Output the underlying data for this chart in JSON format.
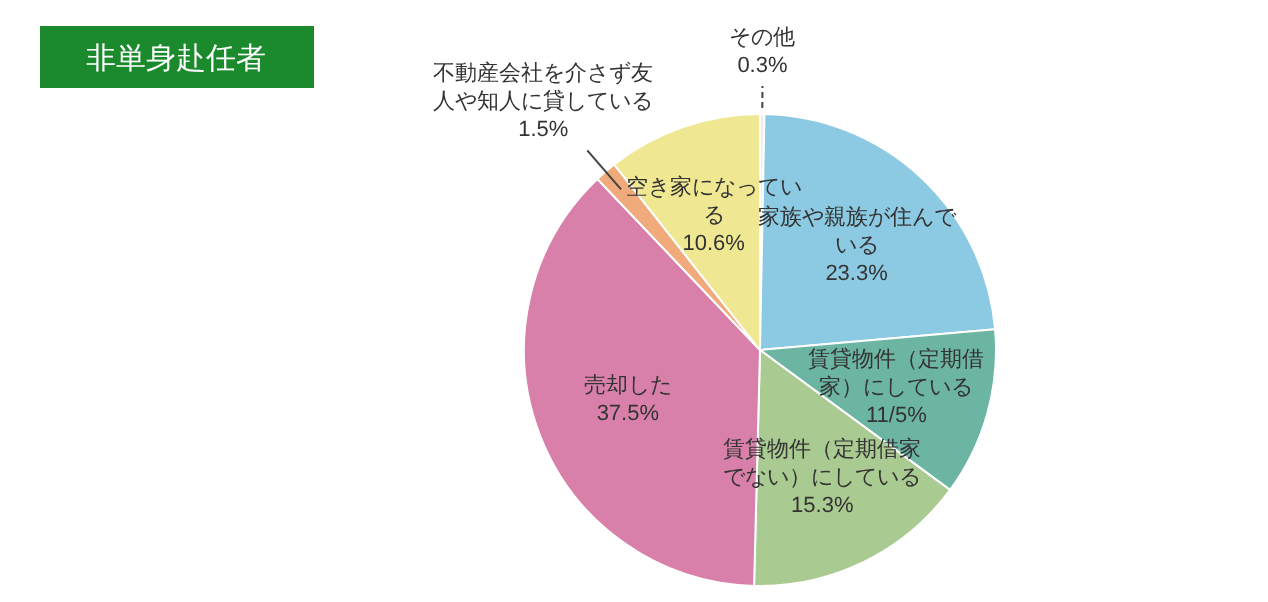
{
  "chart_data": {
    "type": "pie",
    "title": "非単身赴任者",
    "categories": [
      "その他",
      "家族や親族が住んでいる",
      "賃貸物件（定期借家）にしている",
      "賃貸物件（定期借家でない）にしている",
      "売却した",
      "不動産会社を介さず友人や知人に貸している",
      "空き家になっている"
    ],
    "values": [
      0.3,
      23.3,
      11.5,
      15.3,
      37.5,
      1.5,
      10.6
    ],
    "value_labels": [
      "0.3%",
      "23.3%",
      "11/5%",
      "15.3%",
      "37.5%",
      "1.5%",
      "10.6%"
    ],
    "colors": [
      "#eeeeee",
      "#8ccae3",
      "#6cb5a3",
      "#a9ca90",
      "#d880a9",
      "#f0aa7c",
      "#efe792"
    ],
    "legend": false
  }
}
